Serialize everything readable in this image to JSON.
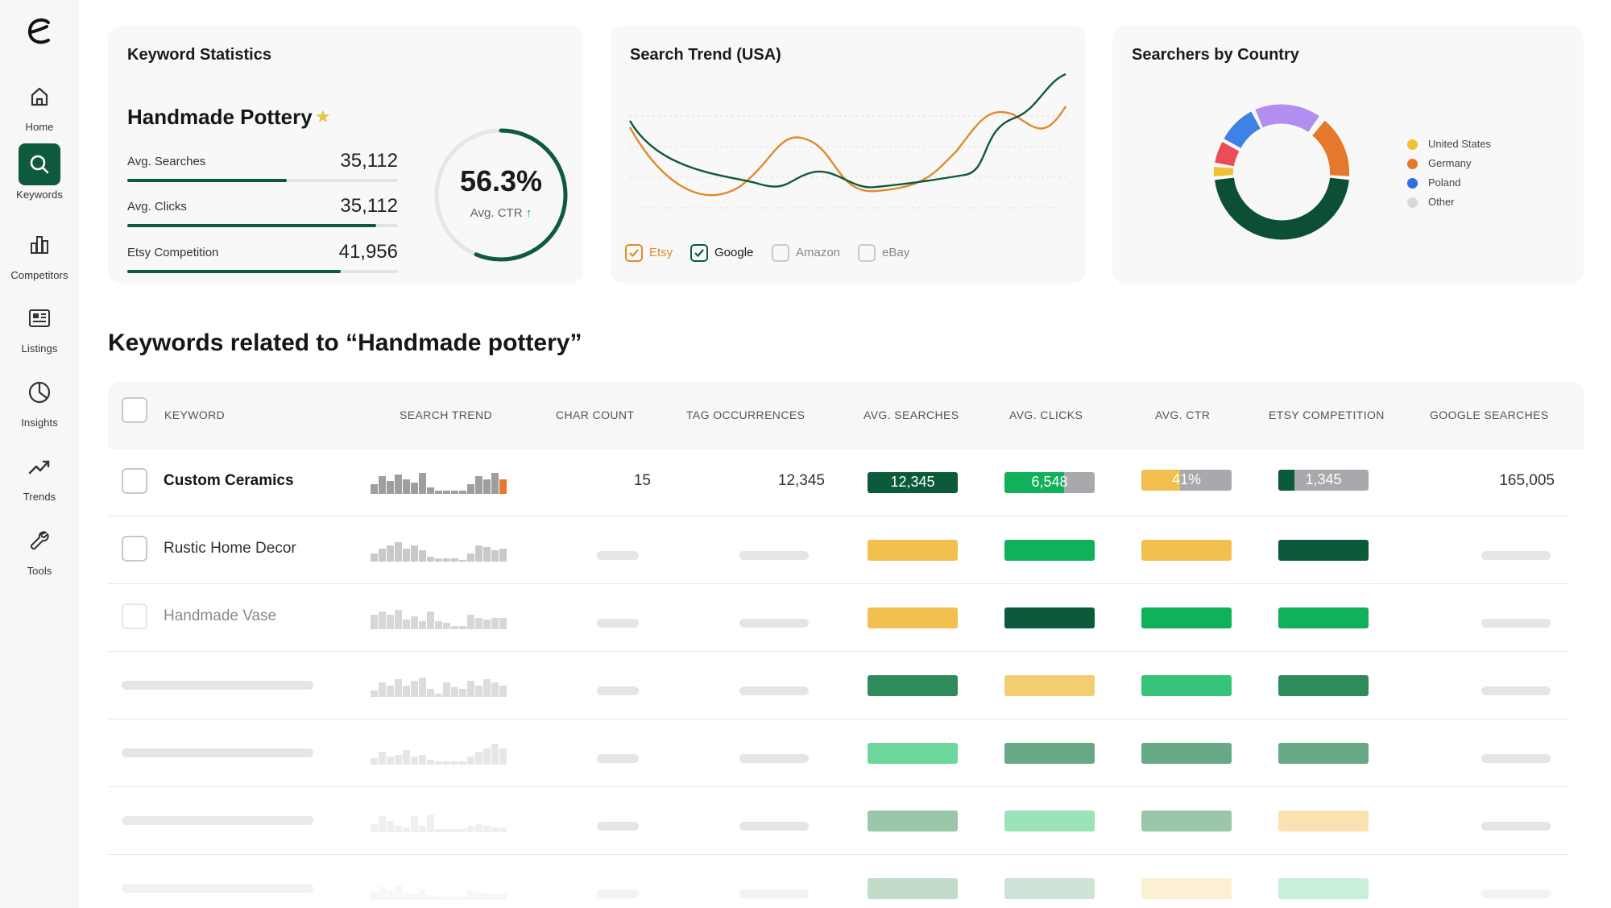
{
  "nav": {
    "items": [
      {
        "label": "Home",
        "icon": "home-icon"
      },
      {
        "label": "Keywords",
        "icon": "search-icon"
      },
      {
        "label": "Competitors",
        "icon": "bar-chart-icon"
      },
      {
        "label": "Listings",
        "icon": "listing-icon"
      },
      {
        "label": "Insights",
        "icon": "pie-icon"
      },
      {
        "label": "Trends",
        "icon": "trend-icon"
      },
      {
        "label": "Tools",
        "icon": "wrench-icon"
      }
    ],
    "active": "Keywords"
  },
  "keyword_stats": {
    "title": "Keyword Statistics",
    "keyword": "Handmade Pottery",
    "stats": [
      {
        "label": "Avg. Searches",
        "value": "35,112",
        "fill": 0.59
      },
      {
        "label": "Avg. Clicks",
        "value": "35,112",
        "fill": 0.92
      },
      {
        "label": "Etsy Competition",
        "value": "41,956",
        "fill": 0.79
      }
    ],
    "ctr_value": "56.3%",
    "ctr_label": "Avg. CTR",
    "ctr_fraction": 0.563
  },
  "search_trend": {
    "title": "Search Trend (USA)",
    "legend": [
      {
        "label": "Etsy",
        "checked": true,
        "color": "#e08a2c"
      },
      {
        "label": "Google",
        "checked": true,
        "color": "#0e5a3c"
      },
      {
        "label": "Amazon",
        "checked": false,
        "color": "#888888"
      },
      {
        "label": "eBay",
        "checked": false,
        "color": "#888888"
      }
    ]
  },
  "searchers_by_country": {
    "title": "Searchers by Country",
    "legend": [
      {
        "label": "United States",
        "color": "#f0c232"
      },
      {
        "label": "Germany",
        "color": "#e5782b"
      },
      {
        "label": "Poland",
        "color": "#2f6fe0"
      },
      {
        "label": "Other",
        "color": "#d8d8d8"
      }
    ]
  },
  "related": {
    "title": "Keywords related to “Handmade pottery”",
    "columns": [
      "KEYWORD",
      "SEARCH TREND",
      "CHAR COUNT",
      "TAG OCCURRENCES",
      "AVG. SEARCHES",
      "AVG. CLICKS",
      "AVG. CTR",
      "ETSY COMPETITION",
      "GOOGLE SEARCHES"
    ],
    "rows": [
      {
        "keyword": "Custom Ceramics",
        "char_count": "15",
        "tag_occurrences": "12,345",
        "avg_searches": "12,345",
        "avg_clicks": "6,548",
        "avg_ctr": "41%",
        "etsy_competition": "1,345",
        "google_searches": "165,005"
      },
      {
        "keyword": "Rustic Home Decor"
      },
      {
        "keyword": "Handmade Vase"
      }
    ]
  },
  "colors": {
    "dark_green": "#0e5a3c",
    "green": "#11b05a",
    "yellow": "#f1c04e",
    "orange": "#e5782b"
  }
}
